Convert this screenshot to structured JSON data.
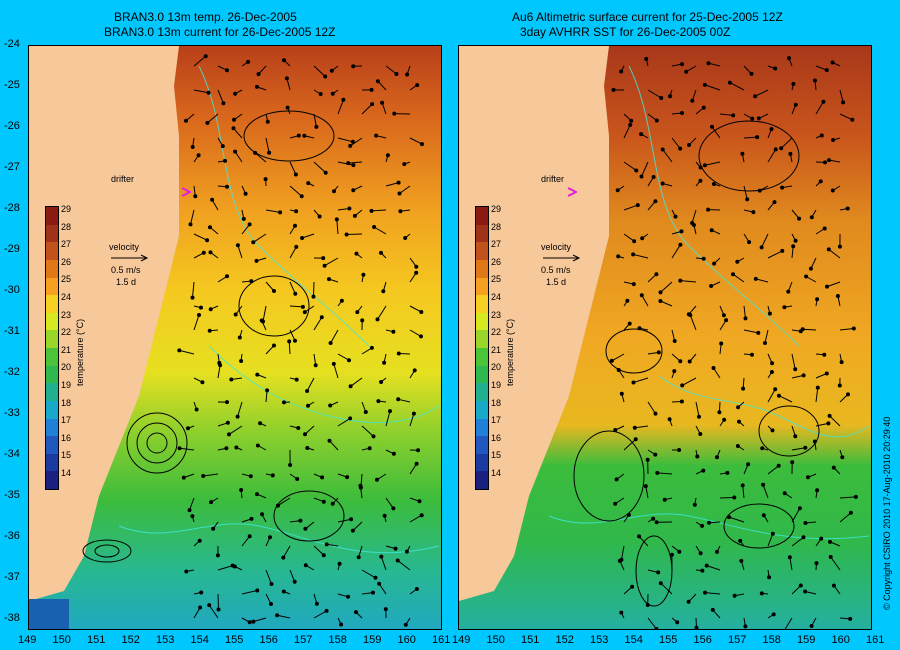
{
  "titles": {
    "left_line1": "BRAN3.0 13m temp. 26-Dec-2005",
    "left_line2": "BRAN3.0 13m current for 26-Dec-2005 12Z",
    "right_line1": "Au6 Altimetric surface current for 25-Dec-2005 12Z",
    "right_line2": "3day AVHRR SST for 26-Dec-2005 00Z"
  },
  "y_axis_labels": [
    "-24",
    "-25",
    "-26",
    "-27",
    "-28",
    "-29",
    "-30",
    "-31",
    "-32",
    "-33",
    "-34",
    "-35",
    "-36",
    "-37",
    "-38"
  ],
  "x_axis_left": [
    "149",
    "150",
    "151",
    "152",
    "153",
    "154",
    "155",
    "156",
    "157",
    "158",
    "159",
    "160",
    "161"
  ],
  "x_axis_right": [
    "149",
    "150",
    "151",
    "152",
    "153",
    "154",
    "155",
    "156",
    "157",
    "158",
    "159",
    "160",
    "161"
  ],
  "drifter_label": "drifter",
  "velocity": {
    "label": "velocity",
    "scale": "0.5 m/s",
    "days": "1.5 d"
  },
  "colorbar": {
    "title": "temperature (°C)",
    "ticks": [
      "29",
      "28",
      "27",
      "26",
      "25",
      "24",
      "23",
      "22",
      "21",
      "20",
      "19",
      "18",
      "17",
      "16",
      "15",
      "14"
    ],
    "colors": [
      "#8b1a10",
      "#a0321a",
      "#c2521c",
      "#e07818",
      "#f5a020",
      "#f5d020",
      "#d6e820",
      "#9ad62a",
      "#4cc43a",
      "#2eb84e",
      "#20b090",
      "#18a8c8",
      "#2080d8",
      "#2058c0",
      "#1a3aa0",
      "#1a2080"
    ]
  },
  "copyright": "© Copyright CSIRO 2010  17-Aug-2010 20:29:40",
  "colors": {
    "background": "#00c8ff",
    "land": "#f7c89a",
    "drifter": "#e020e0",
    "contour": "#40e8e0"
  }
}
